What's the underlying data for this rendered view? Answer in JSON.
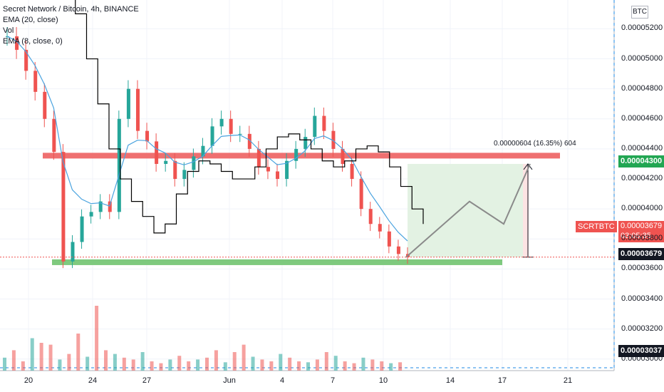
{
  "legend": {
    "title": "Secret Network / Bitcoin, 4h, BINANCE",
    "ema20": "EMA (20, close)",
    "vol": "Vol",
    "ema8": "EMA (8, close, 0)"
  },
  "currency_badge": "BTC",
  "price_tags": {
    "target": "0.00004300",
    "symbol": "SCRTBTC",
    "last_price": "0.00003679",
    "countdown": "03:05:35",
    "crosshair": "0.00003679",
    "volume_level": "0.00003037"
  },
  "measure_label": "0.00000604 (16.35%) 604",
  "colors": {
    "up": "#26a69a",
    "down": "#ef5350",
    "resistance": "#ef7070",
    "support": "#7ec97e",
    "ema20": "#4aa3df",
    "ema8": "#000000",
    "projection_box": "#e3f2e3"
  },
  "chart_data": {
    "type": "candlestick",
    "y_axis_ticks": [
      "0.00005200",
      "0.00005000",
      "0.00004800",
      "0.00004600",
      "0.00004400",
      "0.00004200",
      "0.00004000",
      "0.00003800",
      "0.00003600",
      "0.00003400",
      "0.00003200",
      "0.00003000"
    ],
    "ylim": [
      2.98e-05,
      5.24e-05
    ],
    "x_axis_ticks": [
      "20",
      "24",
      "27",
      "Jun",
      "4",
      "7",
      "10",
      "14",
      "17",
      "21"
    ],
    "resistance_level": 4.355e-05,
    "support_level": 3.645e-05,
    "target_price": 4.3e-05,
    "last_price": 3.679e-05,
    "measured_move": "0.00000604 (16.35%) 604",
    "series": [
      {
        "name": "EMA (20, close)"
      },
      {
        "name": "EMA (8, close, 0)"
      },
      {
        "name": "Vol"
      }
    ],
    "close_path": [
      5.15e-05,
      5.06e-05,
      4.92e-05,
      4.78e-05,
      4.6e-05,
      4.38e-05,
      3.65e-05,
      3.78e-05,
      3.95e-05,
      3.98e-05,
      4.05e-05,
      3.98e-05,
      4.6e-05,
      4.8e-05,
      4.52e-05,
      4.45e-05,
      4.3e-05,
      4.32e-05,
      4.2e-05,
      4.26e-05,
      4.35e-05,
      4.42e-05,
      4.55e-05,
      4.6e-05,
      4.5e-05,
      4.5e-05,
      4.4e-05,
      4.28e-05,
      4.25e-05,
      4.2e-05,
      4.32e-05,
      4.4e-05,
      4.48e-05,
      4.62e-05,
      4.52e-05,
      4.4e-05,
      4.3e-05,
      4.2e-05,
      4e-05,
      3.9e-05,
      3.85e-05,
      3.75e-05,
      3.7e-05,
      3.679e-05
    ],
    "ema8_path": [
      5.5e-05,
      5.3e-05,
      5e-05,
      4.7e-05,
      4.4e-05,
      4.2e-05,
      4.05e-05,
      3.95e-05,
      3.84e-05,
      3.9e-05,
      4.1e-05,
      4.25e-05,
      4.32e-05,
      4.3e-05,
      4.25e-05,
      4.2e-05,
      4.2e-05,
      4.28e-05,
      4.4e-05,
      4.48e-05,
      4.5e-05,
      4.46e-05,
      4.4e-05,
      4.32e-05,
      4.28e-05,
      4.32e-05,
      4.4e-05,
      4.42e-05,
      4.38e-05,
      4.28e-05,
      4.15e-05,
      4e-05,
      3.9e-05
    ],
    "projection_path": [
      3.679e-05,
      4.05e-05,
      3.9e-05,
      4.3e-05
    ],
    "volume_heights": [
      0.14,
      0.22,
      0.1,
      0.35,
      0.3,
      0.28,
      0.12,
      0.18,
      0.4,
      0.15,
      0.7,
      0.22,
      0.18,
      0.14,
      0.12,
      0.2,
      0.1,
      0.08,
      0.12,
      0.16,
      0.1,
      0.12,
      0.14,
      0.22,
      0.09,
      0.2,
      0.28,
      0.15,
      0.12,
      0.1,
      0.18,
      0.14,
      0.1,
      0.09,
      0.12,
      0.2,
      0.16,
      0.1,
      0.08,
      0.14,
      0.12,
      0.1,
      0.08,
      0.09
    ]
  }
}
